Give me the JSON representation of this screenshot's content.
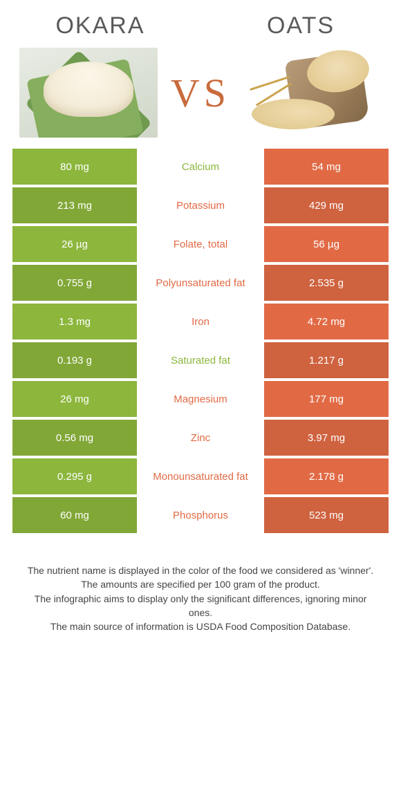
{
  "header": {
    "left_title": "OKARA",
    "right_title": "OATS",
    "vs_label": "VS"
  },
  "colors": {
    "okara": "#8cb63c",
    "oats": "#e16a45",
    "row_alt_shade": 0.92
  },
  "rows": [
    {
      "nutrient": "Calcium",
      "left": "80 mg",
      "right": "54 mg",
      "winner": "okara"
    },
    {
      "nutrient": "Potassium",
      "left": "213 mg",
      "right": "429 mg",
      "winner": "oats"
    },
    {
      "nutrient": "Folate, total",
      "left": "26 µg",
      "right": "56 µg",
      "winner": "oats"
    },
    {
      "nutrient": "Polyunsaturated fat",
      "left": "0.755 g",
      "right": "2.535 g",
      "winner": "oats"
    },
    {
      "nutrient": "Iron",
      "left": "1.3 mg",
      "right": "4.72 mg",
      "winner": "oats"
    },
    {
      "nutrient": "Saturated fat",
      "left": "0.193 g",
      "right": "1.217 g",
      "winner": "okara"
    },
    {
      "nutrient": "Magnesium",
      "left": "26 mg",
      "right": "177 mg",
      "winner": "oats"
    },
    {
      "nutrient": "Zinc",
      "left": "0.56 mg",
      "right": "3.97 mg",
      "winner": "oats"
    },
    {
      "nutrient": "Monounsaturated fat",
      "left": "0.295 g",
      "right": "2.178 g",
      "winner": "oats"
    },
    {
      "nutrient": "Phosphorus",
      "left": "60 mg",
      "right": "523 mg",
      "winner": "oats"
    }
  ],
  "footer_lines": [
    "The nutrient name is displayed in the color of the food we considered as 'winner'.",
    "The amounts are specified per 100 gram of the product.",
    "The infographic aims to display only the significant differences, ignoring minor ones.",
    "The main source of information is USDA Food Composition Database."
  ]
}
